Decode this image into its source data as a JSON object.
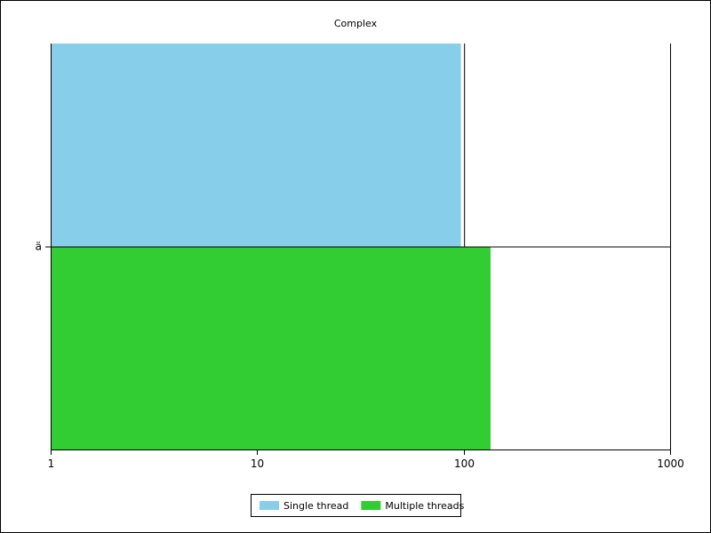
{
  "chart_data": {
    "type": "bar",
    "orientation": "horizontal",
    "title": "Complex",
    "xlabel": "",
    "ylabel": "",
    "x_scale": "log",
    "xlim": [
      1,
      1000
    ],
    "x_ticks": [
      "1",
      "10",
      "100",
      "1000"
    ],
    "categories": [
      "ä"
    ],
    "series": [
      {
        "name": "Single thread",
        "values": [
          97
        ],
        "color": "#87ceeb"
      },
      {
        "name": "Multiple threads",
        "values": [
          135
        ],
        "color": "#32cd32"
      }
    ],
    "grid": false,
    "legend_position": "bottom-center"
  }
}
